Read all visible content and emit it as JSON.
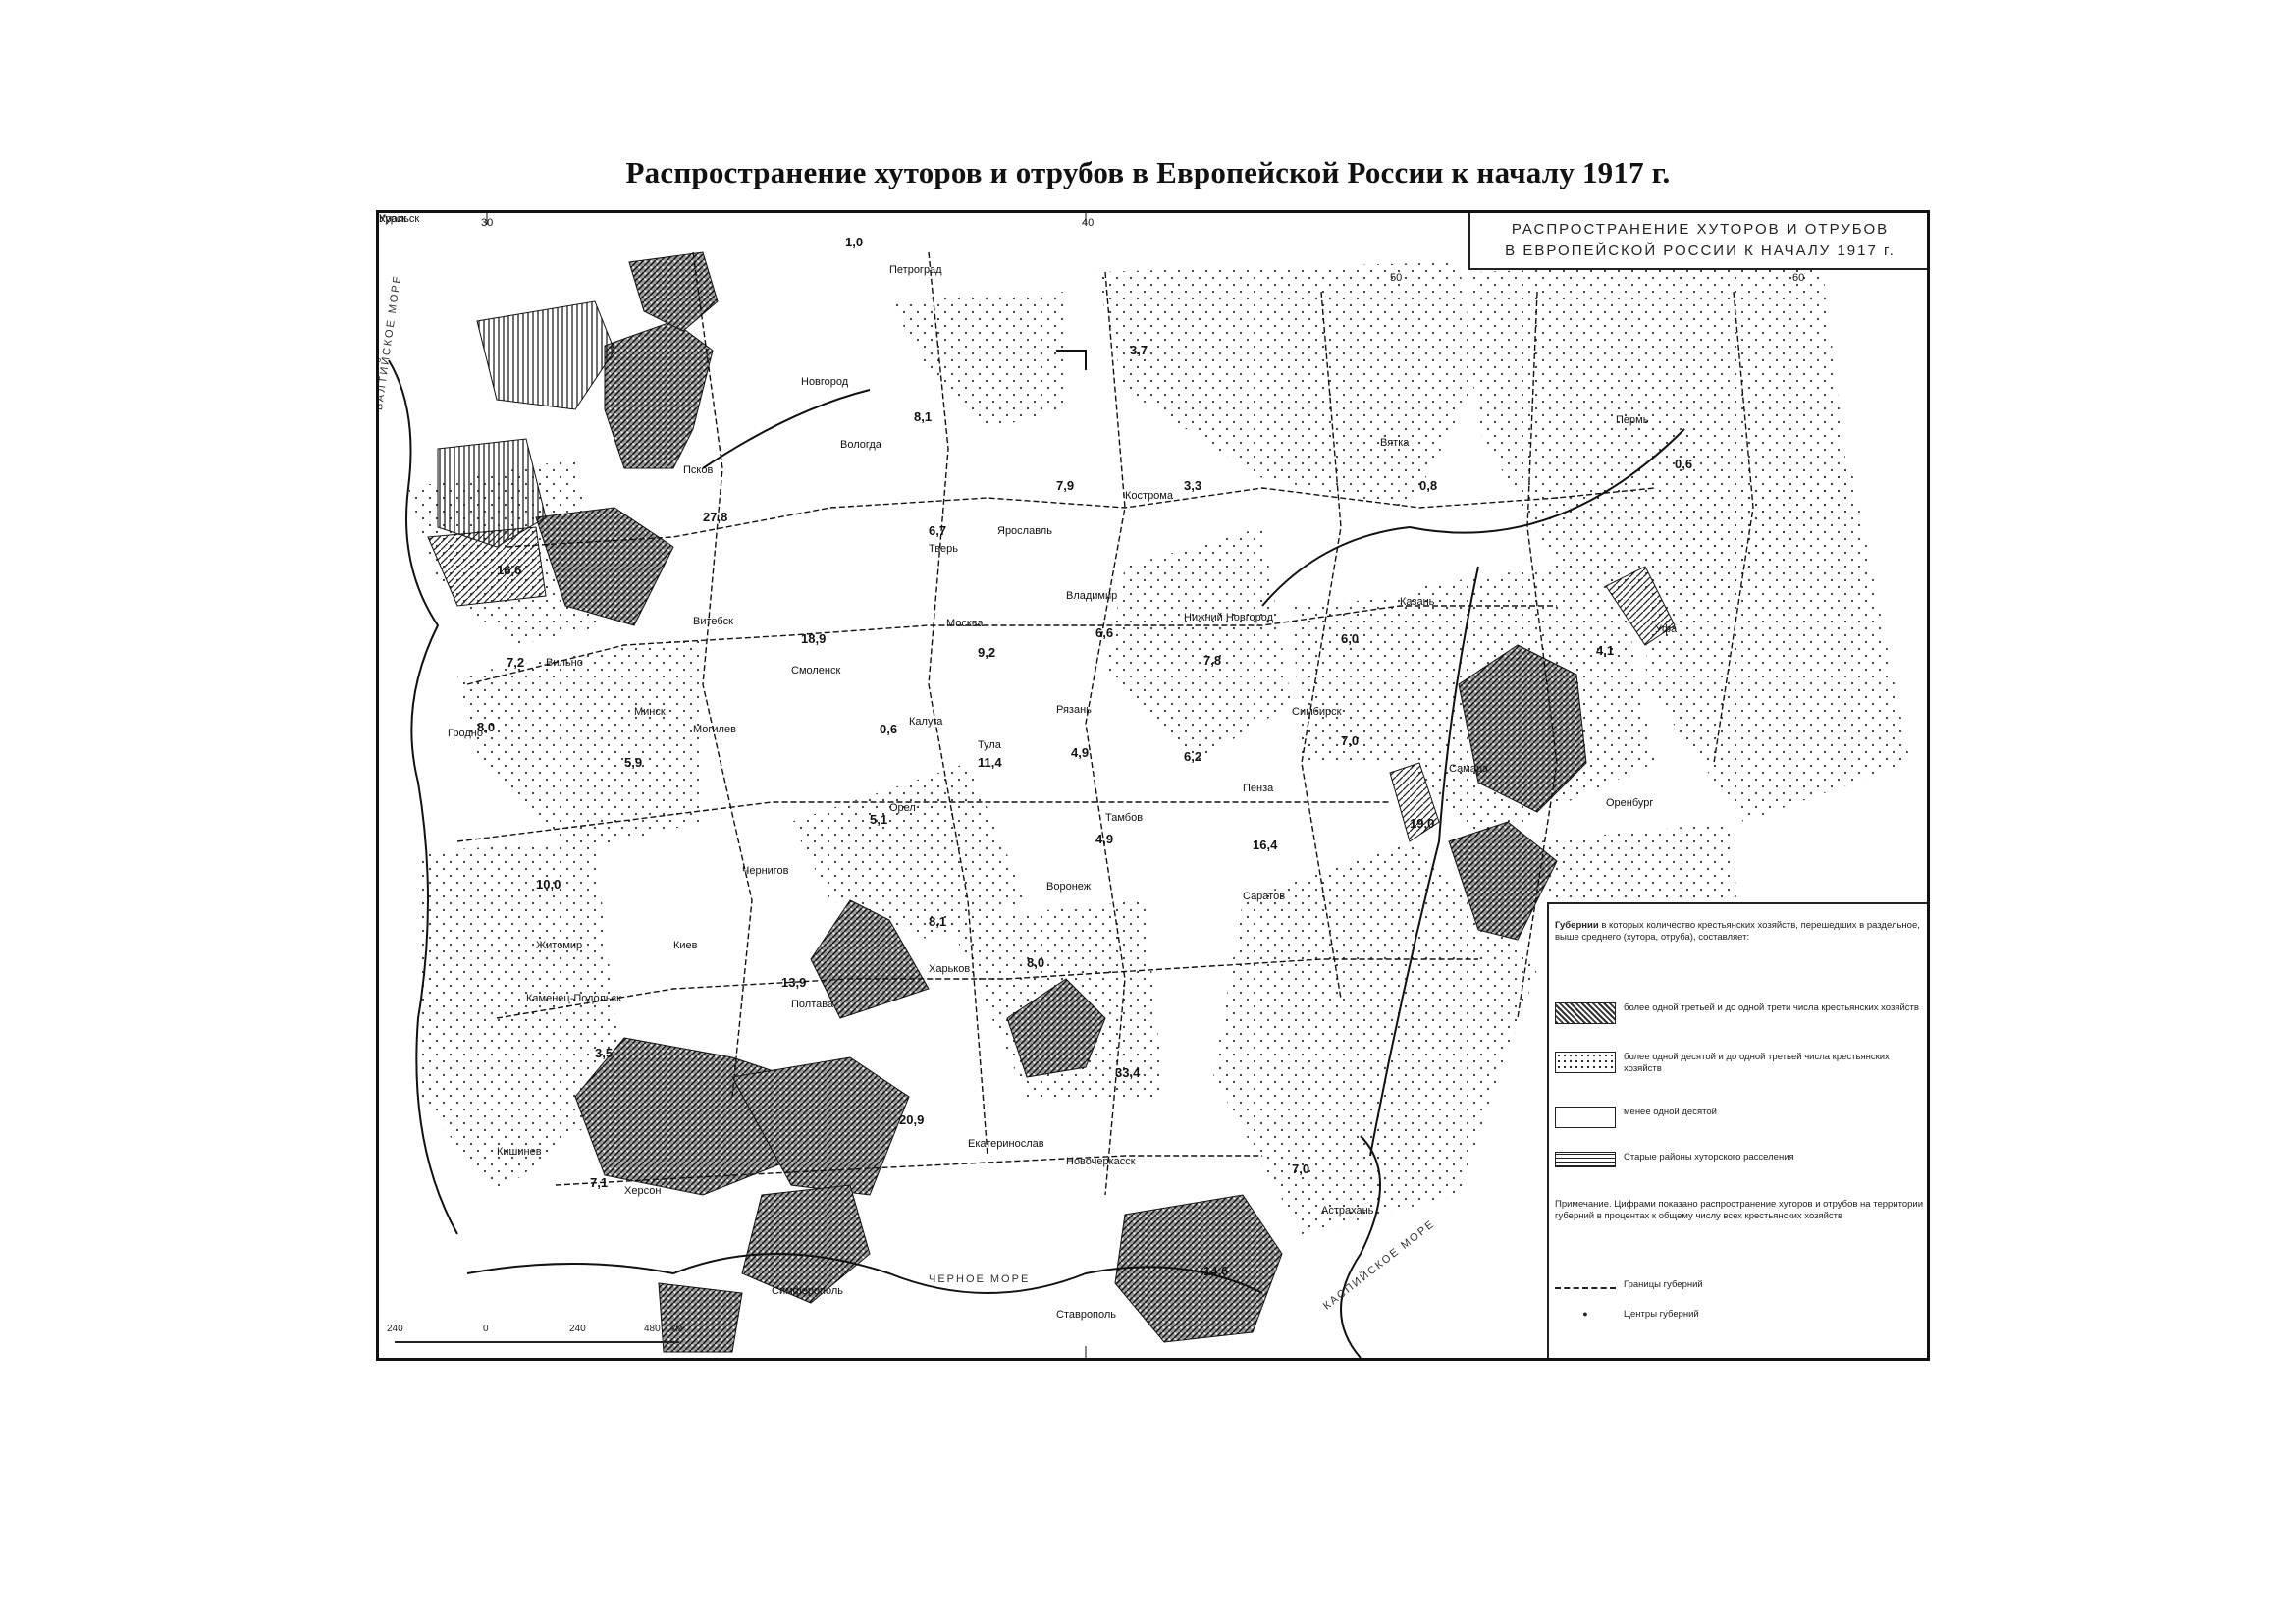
{
  "document": {
    "title": "Распространение хуторов и отрубов в Европейской России к началу 1917 г."
  },
  "map": {
    "inset_title": [
      "РАСПРОСТРАНЕНИЕ ХУТОРОВ И ОТРУБОВ",
      "В ЕВРОПЕЙСКОЙ РОССИИ К НАЧАЛУ 1917 г."
    ],
    "seas": [
      "БАЛТИЙСКОЕ МОРЕ",
      "ЧЕРНОЕ МОРЕ",
      "КАСПИЙСКОЕ МОРЕ"
    ],
    "cities": [
      "Петроград",
      "Новгород",
      "Псков",
      "Вологда",
      "Кострома",
      "Ярославль",
      "Тверь",
      "Владимир",
      "Москва",
      "Нижний Новгород",
      "Казань",
      "Вятка",
      "Пермь",
      "Уфа",
      "Симбирск",
      "Самара",
      "Оренбург",
      "Уральск",
      "Саратов",
      "Пенза",
      "Тамбов",
      "Рязань",
      "Тула",
      "Калуга",
      "Орел",
      "Курск",
      "Воронеж",
      "Харьков",
      "Полтава",
      "Чернигов",
      "Киев",
      "Житомир",
      "Каменец-Подольск",
      "Кишинев",
      "Херсон",
      "Екатеринослав",
      "Симферополь",
      "Новочеркасск",
      "Ставрополь",
      "Астрахань",
      "Смоленск",
      "Могилев",
      "Минск",
      "Вильно",
      "Гродно",
      "Витебск"
    ],
    "values": [
      "1,0",
      "3,7",
      "8,1",
      "7,9",
      "3,3",
      "0,8",
      "0,6",
      "27,8",
      "16,6",
      "6,7",
      "18,9",
      "6,6",
      "9,2",
      "7,8",
      "6,0",
      "4,1",
      "7,2",
      "8,0",
      "5,9",
      "0,6",
      "11,4",
      "4,9",
      "6,2",
      "7,0",
      "5,1",
      "4,9",
      "16,4",
      "10,0",
      "8,1",
      "8,0",
      "13,9",
      "19,0",
      "3,5",
      "33,4",
      "20,9",
      "7,1",
      "7,0",
      "14,6"
    ],
    "scale": {
      "ticks": [
        "240",
        "0",
        "240",
        "480"
      ],
      "unit": "км"
    },
    "meridians": [
      "30",
      "40",
      "50",
      "60"
    ]
  },
  "legend": {
    "header": "Губернии",
    "header_text": "в которых количество крестьянских хозяйств, перешедших в раздельное, выше среднего (хутора, отруба), составляет:",
    "items": [
      {
        "pattern": "dense",
        "text": "более одной третьей и до одной трети числа крестьянских хозяйств"
      },
      {
        "pattern": "dots",
        "text": "более одной десятой и до одной третьей числа крестьянских хозяйств"
      },
      {
        "pattern": "blank",
        "text": "менее одной десятой"
      },
      {
        "pattern": "hatch",
        "text": "Старые районы хуторского расселения"
      }
    ],
    "note": "Примечание. Цифрами показано распространение хуторов и отрубов на территории губерний в процентах к общему числу всех крестьянских хозяйств",
    "boundary_label": "Границы губерний",
    "center_label": "Центры губерний"
  }
}
